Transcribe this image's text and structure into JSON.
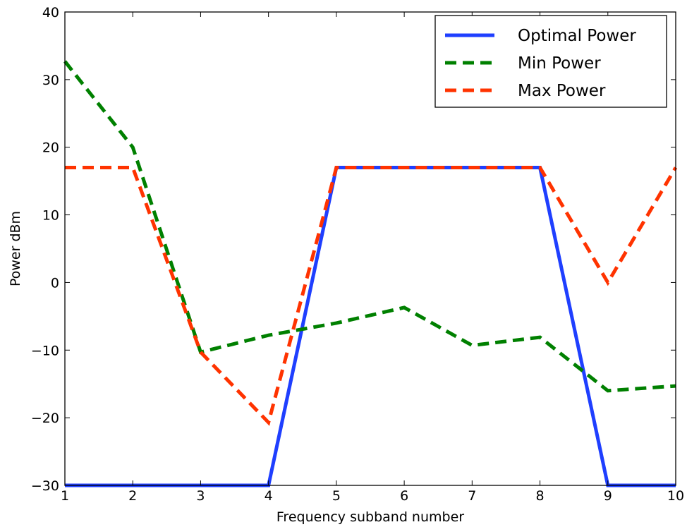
{
  "chart_data": {
    "type": "line",
    "title": "",
    "xlabel": "Frequency subband number",
    "ylabel": "Power dBm",
    "xlim": [
      1,
      10
    ],
    "ylim": [
      -30,
      40
    ],
    "xticks": [
      1,
      2,
      3,
      4,
      5,
      6,
      7,
      8,
      9,
      10
    ],
    "yticks": [
      -30,
      -20,
      -10,
      0,
      10,
      20,
      30,
      40
    ],
    "grid": false,
    "legend_position": "top-right",
    "x": [
      1,
      2,
      3,
      4,
      5,
      6,
      7,
      8,
      9,
      10
    ],
    "series": [
      {
        "name": "Optimal Power",
        "color": "#1f3fff",
        "style": "solid",
        "values": [
          -30,
          -30,
          -30,
          -30,
          17,
          17,
          17,
          17,
          -30,
          -30
        ]
      },
      {
        "name": "Min Power",
        "color": "#008000",
        "style": "dashed",
        "values": [
          32.7,
          20,
          -10.3,
          -7.8,
          -6,
          -3.7,
          -9.3,
          -8.1,
          -16,
          -15.3
        ]
      },
      {
        "name": "Max Power",
        "color": "#ff3300",
        "style": "dashed",
        "values": [
          17,
          17,
          -10.3,
          -20.7,
          17,
          17,
          17,
          17,
          0,
          17
        ]
      }
    ]
  }
}
